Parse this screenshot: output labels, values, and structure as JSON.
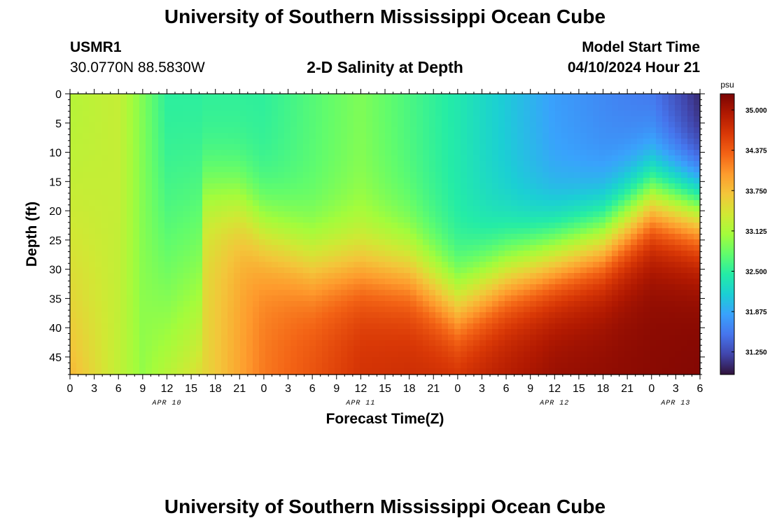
{
  "title": "University of Southern Mississippi Ocean Cube",
  "station": {
    "id": "USMR1",
    "coords": "30.0770N  88.5830W"
  },
  "subtitle": "2-D Salinity at Depth",
  "model": {
    "label": "Model Start Time",
    "time": "04/10/2024 Hour 21"
  },
  "bottom_title": "University of Southern Mississippi Ocean Cube",
  "chart_data": {
    "type": "heatmap",
    "title": "2-D Salinity at Depth",
    "xlabel": "Forecast Time(Z)",
    "ylabel": "Depth (ft)",
    "x_hours_range": [
      0,
      78
    ],
    "x_tick_labels": [
      "0",
      "3",
      "6",
      "9",
      "12",
      "15",
      "18",
      "21",
      "0",
      "3",
      "6",
      "9",
      "12",
      "15",
      "18",
      "21",
      "0",
      "3",
      "6",
      "9",
      "12",
      "15",
      "18",
      "21",
      "0",
      "3",
      "6"
    ],
    "date_labels": [
      {
        "label": "APR 10",
        "hour": 12
      },
      {
        "label": "APR 11",
        "hour": 36
      },
      {
        "label": "APR 12",
        "hour": 60
      },
      {
        "label": "APR 13",
        "hour": 75
      }
    ],
    "ylim": [
      0,
      48
    ],
    "y_ticks": [
      0,
      5,
      10,
      15,
      20,
      25,
      30,
      35,
      40,
      45
    ],
    "colorbar": {
      "unit": "psu",
      "range": [
        30.9,
        35.25
      ],
      "tick_values": [
        35.0,
        34.375,
        33.75,
        33.125,
        32.5,
        31.875,
        31.25
      ],
      "tick_labels": [
        "35.000",
        "34.375",
        "33.750",
        "33.125",
        "32.500",
        "31.875",
        "31.250"
      ],
      "colors": [
        "#30123b",
        "#4145ab",
        "#4675ed",
        "#39a2fc",
        "#1bcfd4",
        "#24eca6",
        "#61fc6c",
        "#a4fc3b",
        "#d1e834",
        "#f3c63a",
        "#fe9b2d",
        "#f36315",
        "#d93806",
        "#b11901",
        "#7a0403"
      ]
    },
    "halocline_depth_ft": [
      {
        "hour": 0,
        "depth": null
      },
      {
        "hour": 14,
        "depth": null
      },
      {
        "hour": 16,
        "depth": 17
      },
      {
        "hour": 21,
        "depth": 19
      },
      {
        "hour": 24,
        "depth": 24
      },
      {
        "hour": 30,
        "depth": 29
      },
      {
        "hour": 36,
        "depth": 29
      },
      {
        "hour": 42,
        "depth": 30
      },
      {
        "hour": 48,
        "depth": 36
      },
      {
        "hour": 54,
        "depth": 31
      },
      {
        "hour": 60,
        "depth": 28
      },
      {
        "hour": 66,
        "depth": 25
      },
      {
        "hour": 72,
        "depth": 18
      },
      {
        "hour": 78,
        "depth": 20
      }
    ],
    "surface_salinity_psu": [
      {
        "hour": 0,
        "value": 33.2
      },
      {
        "hour": 6,
        "value": 33.3
      },
      {
        "hour": 12,
        "value": 32.5
      },
      {
        "hour": 24,
        "value": 32.5
      },
      {
        "hour": 36,
        "value": 32.9
      },
      {
        "hour": 48,
        "value": 32.4
      },
      {
        "hour": 60,
        "value": 31.8
      },
      {
        "hour": 72,
        "value": 31.5
      },
      {
        "hour": 78,
        "value": 31.0
      }
    ],
    "bottom_salinity_psu": [
      {
        "hour": 0,
        "value": 33.8
      },
      {
        "hour": 9,
        "value": 33.0
      },
      {
        "hour": 15,
        "value": 33.4
      },
      {
        "hour": 24,
        "value": 34.2
      },
      {
        "hour": 36,
        "value": 34.7
      },
      {
        "hour": 48,
        "value": 34.8
      },
      {
        "hour": 60,
        "value": 35.1
      },
      {
        "hour": 78,
        "value": 35.2
      }
    ]
  }
}
